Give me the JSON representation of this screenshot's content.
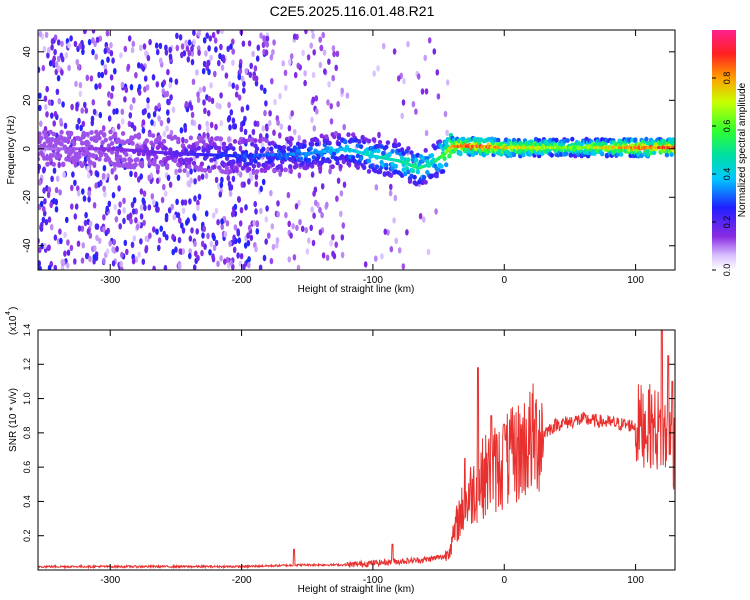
{
  "title": "C2E5.2025.116.01.48.R21",
  "chart_data": [
    {
      "type": "heatmap",
      "xlabel": "Height of straight line (km)",
      "ylabel": "Frequency (Hz)",
      "xlim": [
        -355,
        130
      ],
      "ylim": [
        -50,
        49
      ],
      "xticks": [
        -300,
        -200,
        -100,
        0,
        100
      ],
      "yticks": [
        -40,
        -20,
        0,
        20,
        40
      ],
      "colorbar": {
        "label": "Normalized spectral amplitude",
        "range": [
          0,
          1
        ],
        "ticks": [
          "0.0",
          "0.2",
          "0.4",
          "0.6",
          "0.8"
        ],
        "colormap": "rainbow (white-purple-blue-cyan-green-yellow-red-magenta)"
      },
      "ridge": {
        "description": "dominant spectral line",
        "x": [
          -355,
          -300,
          -250,
          -200,
          -150,
          -120,
          -100,
          -80,
          -65,
          -55,
          -45,
          -40,
          -20,
          0,
          50,
          100,
          130
        ],
        "y": [
          0,
          0,
          -2,
          -3,
          -2,
          0,
          -3,
          -5,
          -8,
          -6,
          -2,
          1,
          1,
          0.5,
          0.5,
          0.5,
          0.5
        ],
        "amplitude": [
          0.1,
          0.15,
          0.2,
          0.3,
          0.35,
          0.4,
          0.45,
          0.5,
          0.55,
          0.5,
          0.6,
          0.85,
          0.9,
          0.8,
          0.65,
          0.85,
          0.9
        ]
      }
    },
    {
      "type": "line",
      "xlabel": "Height of straight line (km)",
      "ylabel": "SNR (10 * v/v)",
      "multiplier": "(x10",
      "multiplier_exp": "4",
      "xlim": [
        -355,
        130
      ],
      "ylim": [
        0,
        1.4
      ],
      "xticks": [
        -300,
        -200,
        -100,
        0,
        100
      ],
      "yticks": [
        "0.2",
        "0.4",
        "0.6",
        "0.8",
        "1.0",
        "1.2",
        "1.4"
      ],
      "color": "#e8312f",
      "series": [
        {
          "x": [
            -355,
            -300,
            -250,
            -200,
            -150,
            -120,
            -100,
            -80,
            -60,
            -45,
            -40,
            -35,
            -25,
            -15,
            -5,
            5,
            20,
            40,
            60,
            80,
            100,
            110,
            120,
            130
          ],
          "y": [
            0.02,
            0.02,
            0.02,
            0.02,
            0.03,
            0.03,
            0.04,
            0.05,
            0.06,
            0.08,
            0.15,
            0.3,
            0.45,
            0.55,
            0.6,
            0.65,
            0.75,
            0.85,
            0.88,
            0.86,
            0.84,
            0.85,
            0.8,
            0.7
          ],
          "spikes": [
            [
              -160,
              0.12
            ],
            [
              -85,
              0.15
            ],
            [
              -30,
              0.65
            ],
            [
              -20,
              1.18
            ],
            [
              -10,
              0.9
            ],
            [
              0,
              0.85
            ],
            [
              110,
              1.05
            ],
            [
              120,
              1.45
            ],
            [
              125,
              1.25
            ],
            [
              128,
              1.1
            ]
          ]
        }
      ]
    }
  ]
}
